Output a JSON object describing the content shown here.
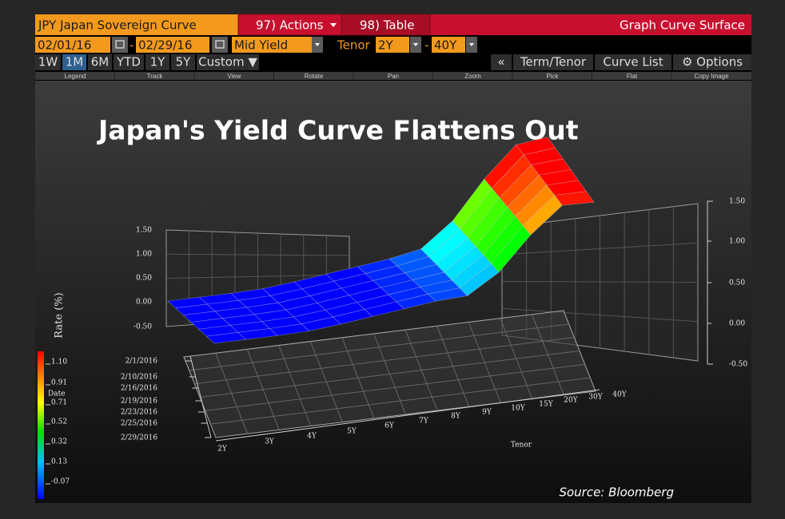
{
  "header": {
    "title": "JPY Japan Sovereign Curve",
    "actions": "97) Actions",
    "table": "98) Table",
    "right_title": "Graph Curve Surface"
  },
  "toolbar": {
    "start_date": "02/01/16",
    "dash": "-",
    "end_date": "02/29/16",
    "field": "Mid Yield",
    "tenor_label": "Tenor",
    "tenor_from": "2Y",
    "tenor_to": "40Y"
  },
  "periods": [
    "1W",
    "1M",
    "6M",
    "YTD",
    "1Y",
    "5Y",
    "Custom ▼"
  ],
  "right_buttons": [
    "«",
    "Term/Tenor",
    "Curve List",
    "⚙ Options"
  ],
  "sublabels": [
    "Legend",
    "Track",
    "View",
    "Rotate",
    "Pan",
    "Zoom",
    "Pick",
    "Flat",
    "Copy Image"
  ],
  "chart": {
    "title": "Japan's Yield Curve Flattens Out",
    "left_axis_label": "Rate (%)",
    "left_ticks": [
      "1.50",
      "1.00",
      "0.50",
      "0.00",
      "-0.50"
    ],
    "right_ticks": [
      "1.50",
      "1.00",
      "0.50",
      "0.00",
      "-0.50"
    ],
    "dates": [
      "2/1/2016",
      "2/10/2016",
      "2/16/2016",
      "2/19/2016",
      "2/23/2016",
      "2/25/2016",
      "2/29/2016"
    ],
    "tenors": [
      "2Y",
      "3Y",
      "4Y",
      "5Y",
      "6Y",
      "7Y",
      "8Y",
      "9Y",
      "10Y",
      "15Y",
      "20Y",
      "30Y",
      "40Y"
    ],
    "tenor_label": "Tenor",
    "legend_title": "Date",
    "legend_ticks": [
      "1.10",
      "0.91",
      "0.71",
      "0.52",
      "0.32",
      "0.13",
      "-0.07"
    ],
    "source": "Source: Bloomberg"
  }
}
